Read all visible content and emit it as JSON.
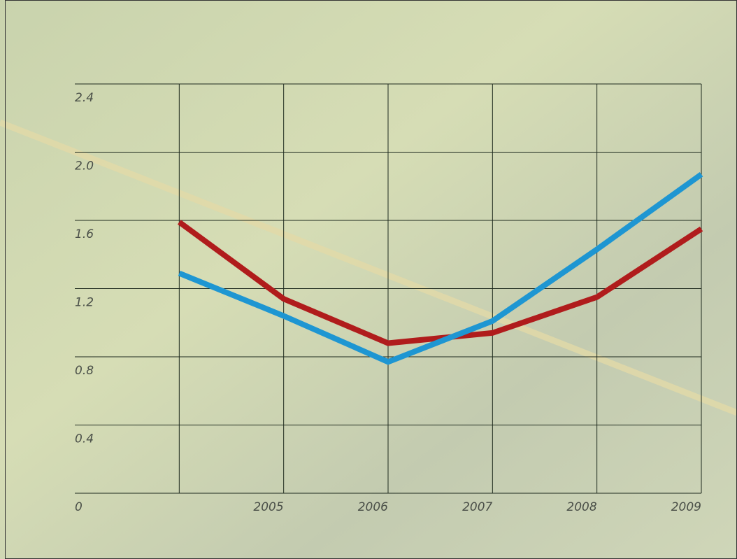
{
  "chart_data": {
    "type": "line",
    "categories": [
      null,
      "2005",
      "2006",
      "2007",
      "2008",
      "2009"
    ],
    "series": [
      {
        "color": "#b01c1c",
        "values": [
          1.59,
          1.14,
          0.88,
          0.94,
          1.15,
          1.55
        ]
      },
      {
        "color": "#1e96d2",
        "values": [
          1.29,
          1.04,
          0.77,
          1.01,
          1.43,
          1.87
        ]
      }
    ],
    "ylim": [
      0,
      2.4
    ],
    "yticks": [
      0,
      0.4,
      0.8,
      1.2,
      1.6,
      {
        "value": 2,
        "label": "2.0"
      },
      2.4
    ],
    "grid": true
  }
}
